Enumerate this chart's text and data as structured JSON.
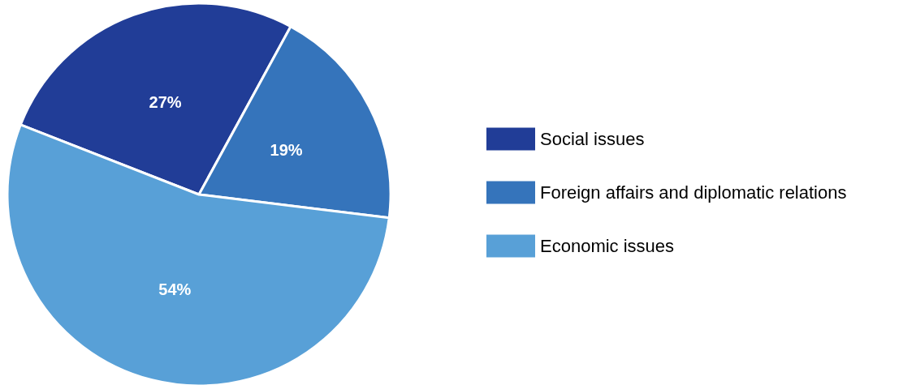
{
  "chart_data": {
    "type": "pie",
    "categories": [
      "Social issues",
      "Foreign affairs and diplomatic relations",
      "Economic issues"
    ],
    "values": [
      27,
      19,
      54
    ],
    "colors": [
      "#213d97",
      "#3574bb",
      "#58a0d7"
    ],
    "value_labels": [
      "27%",
      "19%",
      "54%"
    ],
    "legend": "right"
  }
}
